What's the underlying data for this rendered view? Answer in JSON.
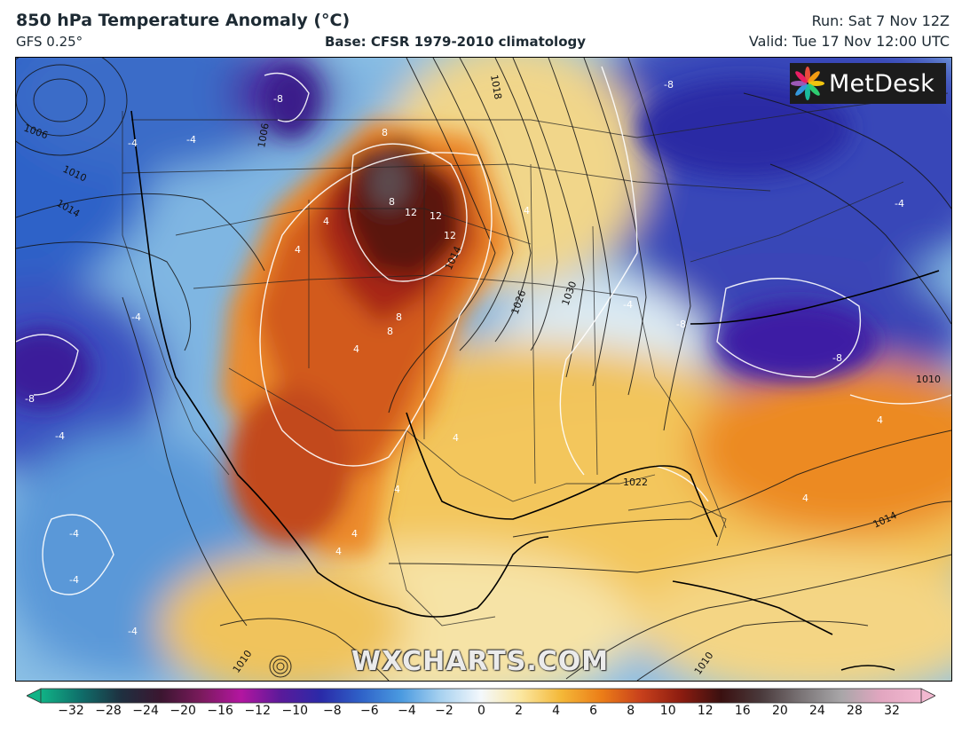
{
  "header": {
    "title": "850 hPa Temperature Anomaly (°C)",
    "model": "GFS 0.25°",
    "base": "Base: CFSR 1979-2010 climatology",
    "run": "Run: Sat 7 Nov 12Z",
    "valid": "Valid: Tue 17 Nov 12:00 UTC"
  },
  "logo": {
    "text": "MetDesk",
    "icon": "pinwheel-logo-icon"
  },
  "watermark": "WXCHARTS.COM",
  "colorbar": {
    "ticks": [
      "−32",
      "−28",
      "−24",
      "−20",
      "−16",
      "−12",
      "−10",
      "−8",
      "−6",
      "−4",
      "−2",
      "0",
      "2",
      "4",
      "6",
      "8",
      "10",
      "12",
      "16",
      "20",
      "24",
      "28",
      "32"
    ],
    "colors": [
      "#10b386",
      "#0f6e6a",
      "#1e3040",
      "#3b1630",
      "#7a1a5c",
      "#b316a0",
      "#5a1a9a",
      "#2a2aa8",
      "#2f62c8",
      "#4a9ae0",
      "#a8d2f0",
      "#f4f8fc",
      "#fbe7a0",
      "#f4b838",
      "#ec7e18",
      "#c8401c",
      "#8c1c10",
      "#3a1010",
      "#4a3a3c",
      "#7a7476",
      "#a8a6a8",
      "#e2a6c0",
      "#f2b8d0"
    ]
  },
  "map": {
    "contour_labels": [
      "1006",
      "1010",
      "1014",
      "1018",
      "1006",
      "1014",
      "1026",
      "1030",
      "1010",
      "1014",
      "1022",
      "1010",
      "1010"
    ],
    "anomaly_labels": [
      "-8",
      "-4",
      "-4",
      "-8",
      "-8",
      "-8",
      "-4",
      "-4",
      "-4",
      "-4",
      "-4",
      "-4",
      "4",
      "4",
      "4",
      "8",
      "8",
      "8",
      "8",
      "12",
      "12",
      "12",
      "4",
      "4",
      "4",
      "4",
      "4",
      "4",
      "4",
      "-4",
      "-8"
    ]
  }
}
